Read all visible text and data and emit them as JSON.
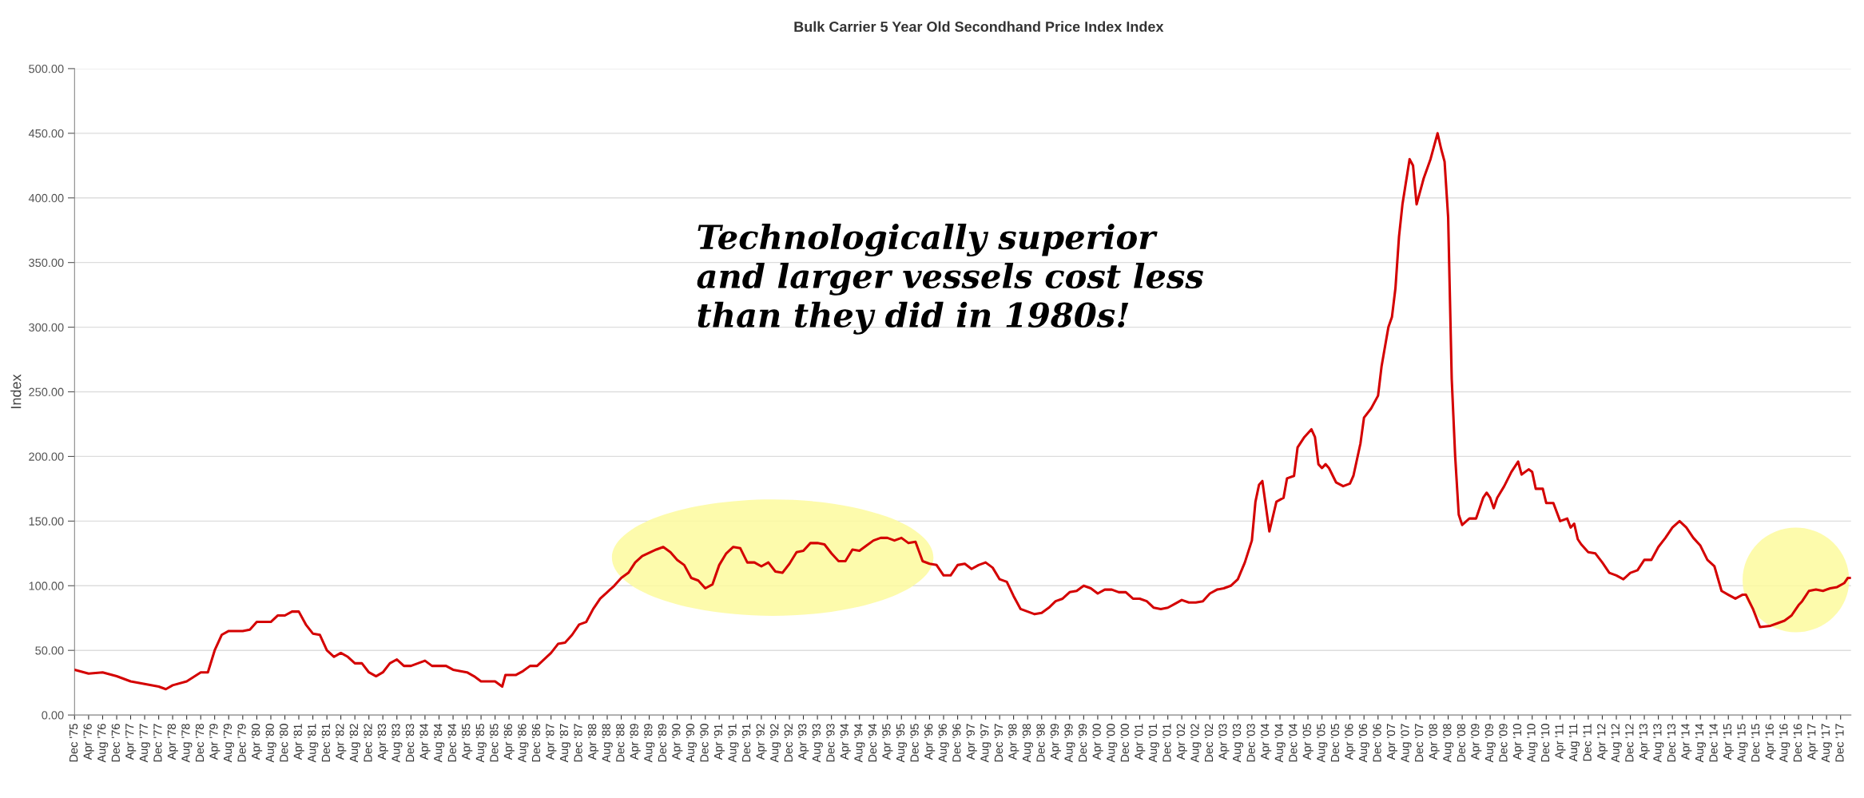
{
  "chart_data": {
    "type": "line",
    "title": "Bulk Carrier 5 Year Old Secondhand Price Index Index",
    "ylabel": "Index",
    "annotations": [
      "Technologically superior\nand larger vessels cost less\nthan they did in 1980s!"
    ],
    "grid": "y",
    "marker": "none",
    "line_style": "solid",
    "xlim": [
      "1975-12",
      "2018-03"
    ],
    "ylim": [
      0,
      500
    ],
    "yticks": [
      {
        "value": 0,
        "label": "0.00"
      },
      {
        "value": 50,
        "label": "50.00"
      },
      {
        "value": 100,
        "label": "100.00"
      },
      {
        "value": 150,
        "label": "150.00"
      },
      {
        "value": 200,
        "label": "200.00"
      },
      {
        "value": 250,
        "label": "250.00"
      },
      {
        "value": 300,
        "label": "300.00"
      },
      {
        "value": 350,
        "label": "350.00"
      },
      {
        "value": 400,
        "label": "400.00"
      },
      {
        "value": 450,
        "label": "450.00"
      },
      {
        "value": 500,
        "label": "500.00"
      }
    ],
    "xticks": [
      {
        "value": "1975-12",
        "label": "Dec '75"
      },
      {
        "value": "1976-04",
        "label": "Apr '76"
      },
      {
        "value": "1976-08",
        "label": "Aug '76"
      },
      {
        "value": "1976-12",
        "label": "Dec '76"
      },
      {
        "value": "1977-04",
        "label": "Apr '77"
      },
      {
        "value": "1977-08",
        "label": "Aug '77"
      },
      {
        "value": "1977-12",
        "label": "Dec '77"
      },
      {
        "value": "1978-04",
        "label": "Apr '78"
      },
      {
        "value": "1978-08",
        "label": "Aug '78"
      },
      {
        "value": "1978-12",
        "label": "Dec '78"
      },
      {
        "value": "1979-04",
        "label": "Apr '79"
      },
      {
        "value": "1979-08",
        "label": "Aug '79"
      },
      {
        "value": "1979-12",
        "label": "Dec '79"
      },
      {
        "value": "1980-04",
        "label": "Apr '80"
      },
      {
        "value": "1980-08",
        "label": "Aug '80"
      },
      {
        "value": "1980-12",
        "label": "Dec '80"
      },
      {
        "value": "1981-04",
        "label": "Apr '81"
      },
      {
        "value": "1981-08",
        "label": "Aug '81"
      },
      {
        "value": "1981-12",
        "label": "Dec '81"
      },
      {
        "value": "1982-04",
        "label": "Apr '82"
      },
      {
        "value": "1982-08",
        "label": "Aug '82"
      },
      {
        "value": "1982-12",
        "label": "Dec '82"
      },
      {
        "value": "1983-04",
        "label": "Apr '83"
      },
      {
        "value": "1983-08",
        "label": "Aug '83"
      },
      {
        "value": "1983-12",
        "label": "Dec '83"
      },
      {
        "value": "1984-04",
        "label": "Apr '84"
      },
      {
        "value": "1984-08",
        "label": "Aug '84"
      },
      {
        "value": "1984-12",
        "label": "Dec '84"
      },
      {
        "value": "1985-04",
        "label": "Apr '85"
      },
      {
        "value": "1985-08",
        "label": "Aug '85"
      },
      {
        "value": "1985-12",
        "label": "Dec '85"
      },
      {
        "value": "1986-04",
        "label": "Apr '86"
      },
      {
        "value": "1986-08",
        "label": "Aug '86"
      },
      {
        "value": "1986-12",
        "label": "Dec '86"
      },
      {
        "value": "1987-04",
        "label": "Apr '87"
      },
      {
        "value": "1987-08",
        "label": "Aug '87"
      },
      {
        "value": "1987-12",
        "label": "Dec '87"
      },
      {
        "value": "1988-04",
        "label": "Apr '88"
      },
      {
        "value": "1988-08",
        "label": "Aug '88"
      },
      {
        "value": "1988-12",
        "label": "Dec '88"
      },
      {
        "value": "1989-04",
        "label": "Apr '89"
      },
      {
        "value": "1989-08",
        "label": "Aug '89"
      },
      {
        "value": "1989-12",
        "label": "Dec '89"
      },
      {
        "value": "1990-04",
        "label": "Apr '90"
      },
      {
        "value": "1990-08",
        "label": "Aug '90"
      },
      {
        "value": "1990-12",
        "label": "Dec '90"
      },
      {
        "value": "1991-04",
        "label": "Apr '91"
      },
      {
        "value": "1991-08",
        "label": "Aug '91"
      },
      {
        "value": "1991-12",
        "label": "Dec '91"
      },
      {
        "value": "1992-04",
        "label": "Apr '92"
      },
      {
        "value": "1992-08",
        "label": "Aug '92"
      },
      {
        "value": "1992-12",
        "label": "Dec '92"
      },
      {
        "value": "1993-04",
        "label": "Apr '93"
      },
      {
        "value": "1993-08",
        "label": "Aug '93"
      },
      {
        "value": "1993-12",
        "label": "Dec '93"
      },
      {
        "value": "1994-04",
        "label": "Apr '94"
      },
      {
        "value": "1994-08",
        "label": "Aug '94"
      },
      {
        "value": "1994-12",
        "label": "Dec '94"
      },
      {
        "value": "1995-04",
        "label": "Apr '95"
      },
      {
        "value": "1995-08",
        "label": "Aug '95"
      },
      {
        "value": "1995-12",
        "label": "Dec '95"
      },
      {
        "value": "1996-04",
        "label": "Apr '96"
      },
      {
        "value": "1996-08",
        "label": "Aug '96"
      },
      {
        "value": "1996-12",
        "label": "Dec '96"
      },
      {
        "value": "1997-04",
        "label": "Apr '97"
      },
      {
        "value": "1997-08",
        "label": "Aug '97"
      },
      {
        "value": "1997-12",
        "label": "Dec '97"
      },
      {
        "value": "1998-04",
        "label": "Apr '98"
      },
      {
        "value": "1998-08",
        "label": "Aug '98"
      },
      {
        "value": "1998-12",
        "label": "Dec '98"
      },
      {
        "value": "1999-04",
        "label": "Apr '99"
      },
      {
        "value": "1999-08",
        "label": "Aug '99"
      },
      {
        "value": "1999-12",
        "label": "Dec '99"
      },
      {
        "value": "2000-04",
        "label": "Apr '00"
      },
      {
        "value": "2000-08",
        "label": "Aug '00"
      },
      {
        "value": "2000-12",
        "label": "Dec '00"
      },
      {
        "value": "2001-04",
        "label": "Apr '01"
      },
      {
        "value": "2001-08",
        "label": "Aug '01"
      },
      {
        "value": "2001-12",
        "label": "Dec '01"
      },
      {
        "value": "2002-04",
        "label": "Apr '02"
      },
      {
        "value": "2002-08",
        "label": "Aug '02"
      },
      {
        "value": "2002-12",
        "label": "Dec '02"
      },
      {
        "value": "2003-04",
        "label": "Apr '03"
      },
      {
        "value": "2003-08",
        "label": "Aug '03"
      },
      {
        "value": "2003-12",
        "label": "Dec '03"
      },
      {
        "value": "2004-04",
        "label": "Apr '04"
      },
      {
        "value": "2004-08",
        "label": "Aug '04"
      },
      {
        "value": "2004-12",
        "label": "Dec '04"
      },
      {
        "value": "2005-04",
        "label": "Apr '05"
      },
      {
        "value": "2005-08",
        "label": "Aug '05"
      },
      {
        "value": "2005-12",
        "label": "Dec '05"
      },
      {
        "value": "2006-04",
        "label": "Apr '06"
      },
      {
        "value": "2006-08",
        "label": "Aug '06"
      },
      {
        "value": "2006-12",
        "label": "Dec '06"
      },
      {
        "value": "2007-04",
        "label": "Apr '07"
      },
      {
        "value": "2007-08",
        "label": "Aug '07"
      },
      {
        "value": "2007-12",
        "label": "Dec '07"
      },
      {
        "value": "2008-04",
        "label": "Apr '08"
      },
      {
        "value": "2008-08",
        "label": "Aug '08"
      },
      {
        "value": "2008-12",
        "label": "Dec '08"
      },
      {
        "value": "2009-04",
        "label": "Apr '09"
      },
      {
        "value": "2009-08",
        "label": "Aug '09"
      },
      {
        "value": "2009-12",
        "label": "Dec '09"
      },
      {
        "value": "2010-04",
        "label": "Apr '10"
      },
      {
        "value": "2010-08",
        "label": "Aug '10"
      },
      {
        "value": "2010-12",
        "label": "Dec '10"
      },
      {
        "value": "2011-04",
        "label": "Apr '11"
      },
      {
        "value": "2011-08",
        "label": "Aug '11"
      },
      {
        "value": "2011-12",
        "label": "Dec '11"
      },
      {
        "value": "2012-04",
        "label": "Apr '12"
      },
      {
        "value": "2012-08",
        "label": "Aug '12"
      },
      {
        "value": "2012-12",
        "label": "Dec '12"
      },
      {
        "value": "2013-04",
        "label": "Apr '13"
      },
      {
        "value": "2013-08",
        "label": "Aug '13"
      },
      {
        "value": "2013-12",
        "label": "Dec '13"
      },
      {
        "value": "2014-04",
        "label": "Apr '14"
      },
      {
        "value": "2014-08",
        "label": "Aug '14"
      },
      {
        "value": "2014-12",
        "label": "Dec '14"
      },
      {
        "value": "2015-04",
        "label": "Apr '15"
      },
      {
        "value": "2015-08",
        "label": "Aug '15"
      },
      {
        "value": "2015-12",
        "label": "Dec '15"
      },
      {
        "value": "2016-04",
        "label": "Apr '16"
      },
      {
        "value": "2016-08",
        "label": "Aug '16"
      },
      {
        "value": "2016-12",
        "label": "Dec '16"
      },
      {
        "value": "2017-04",
        "label": "Apr '17"
      },
      {
        "value": "2017-08",
        "label": "Aug '17"
      },
      {
        "value": "2017-12",
        "label": "Dec '17"
      }
    ],
    "series": [
      {
        "color": "#d40000",
        "x": [
          "1975-12",
          "1976-04",
          "1976-08",
          "1976-12",
          "1977-04",
          "1977-08",
          "1977-12",
          "1978-02",
          "1978-04",
          "1978-08",
          "1978-12",
          "1979-02",
          "1979-04",
          "1979-06",
          "1979-08",
          "1979-12",
          "1980-02",
          "1980-04",
          "1980-08",
          "1980-10",
          "1980-12",
          "1981-02",
          "1981-04",
          "1981-06",
          "1981-08",
          "1981-10",
          "1981-12",
          "1982-02",
          "1982-04",
          "1982-06",
          "1982-08",
          "1982-10",
          "1982-12",
          "1983-02",
          "1983-04",
          "1983-06",
          "1983-08",
          "1983-10",
          "1983-12",
          "1984-04",
          "1984-06",
          "1984-10",
          "1984-12",
          "1985-04",
          "1985-06",
          "1985-08",
          "1985-12",
          "1986-02",
          "1986-03",
          "1986-06",
          "1986-08",
          "1986-10",
          "1986-12",
          "1987-04",
          "1987-06",
          "1987-08",
          "1987-10",
          "1987-12",
          "1988-02",
          "1988-04",
          "1988-06",
          "1988-08",
          "1988-10",
          "1988-12",
          "1989-02",
          "1989-04",
          "1989-06",
          "1989-10",
          "1989-12",
          "1990-02",
          "1990-04",
          "1990-06",
          "1990-08",
          "1990-10",
          "1990-12",
          "1991-02",
          "1991-04",
          "1991-06",
          "1991-08",
          "1991-10",
          "1991-12",
          "1992-02",
          "1992-04",
          "1992-06",
          "1992-08",
          "1992-10",
          "1992-12",
          "1993-02",
          "1993-04",
          "1993-06",
          "1993-08",
          "1993-10",
          "1993-12",
          "1994-02",
          "1994-04",
          "1994-06",
          "1994-08",
          "1994-10",
          "1994-12",
          "1995-02",
          "1995-04",
          "1995-06",
          "1995-08",
          "1995-10",
          "1995-12",
          "1996-02",
          "1996-04",
          "1996-06",
          "1996-08",
          "1996-10",
          "1996-12",
          "1997-02",
          "1997-04",
          "1997-06",
          "1997-08",
          "1997-10",
          "1997-12",
          "1998-02",
          "1998-04",
          "1998-06",
          "1998-08",
          "1998-10",
          "1998-12",
          "1999-02",
          "1999-04",
          "1999-06",
          "1999-08",
          "1999-10",
          "1999-12",
          "2000-02",
          "2000-04",
          "2000-06",
          "2000-08",
          "2000-10",
          "2000-12",
          "2001-02",
          "2001-04",
          "2001-06",
          "2001-08",
          "2001-10",
          "2001-12",
          "2002-02",
          "2002-04",
          "2002-06",
          "2002-08",
          "2002-10",
          "2002-12",
          "2003-02",
          "2003-04",
          "2003-06",
          "2003-08",
          "2003-10",
          "2003-12",
          "2004-01",
          "2004-02",
          "2004-03",
          "2004-05",
          "2004-07",
          "2004-09",
          "2004-10",
          "2004-12",
          "2005-01",
          "2005-03",
          "2005-05",
          "2005-06",
          "2005-07",
          "2005-08",
          "2005-09",
          "2005-10",
          "2005-12",
          "2006-02",
          "2006-04",
          "2006-05",
          "2006-07",
          "2006-08",
          "2006-10",
          "2006-12",
          "2007-01",
          "2007-03",
          "2007-04",
          "2007-05",
          "2007-06",
          "2007-07",
          "2007-09",
          "2007-10",
          "2007-11",
          "2008-01",
          "2008-03",
          "2008-05",
          "2008-06",
          "2008-07",
          "2008-08",
          "2008-09",
          "2008-10",
          "2008-11",
          "2008-12",
          "2009-02",
          "2009-04",
          "2009-06",
          "2009-07",
          "2009-08",
          "2009-09",
          "2009-10",
          "2009-12",
          "2010-02",
          "2010-04",
          "2010-05",
          "2010-07",
          "2010-08",
          "2010-09",
          "2010-11",
          "2010-12",
          "2011-02",
          "2011-04",
          "2011-06",
          "2011-07",
          "2011-08",
          "2011-09",
          "2011-10",
          "2011-12",
          "2012-02",
          "2012-04",
          "2012-06",
          "2012-08",
          "2012-10",
          "2012-12",
          "2013-02",
          "2013-04",
          "2013-06",
          "2013-08",
          "2013-10",
          "2013-12",
          "2014-02",
          "2014-04",
          "2014-06",
          "2014-08",
          "2014-10",
          "2014-12",
          "2015-02",
          "2015-04",
          "2015-06",
          "2015-08",
          "2015-09",
          "2015-11",
          "2016-01",
          "2016-04",
          "2016-06",
          "2016-08",
          "2016-10",
          "2016-12",
          "2017-01",
          "2017-03",
          "2017-05",
          "2017-07",
          "2017-09",
          "2017-11",
          "2018-01",
          "2018-02",
          "2018-03"
        ],
        "values": [
          35,
          32,
          33,
          30,
          26,
          24,
          22,
          20,
          23,
          26,
          33,
          33,
          50,
          62,
          65,
          65,
          66,
          72,
          72,
          77,
          77,
          80,
          80,
          70,
          63,
          62,
          50,
          45,
          48,
          45,
          40,
          40,
          33,
          30,
          33,
          40,
          43,
          38,
          38,
          42,
          38,
          38,
          35,
          33,
          30,
          26,
          26,
          22,
          31,
          31,
          34,
          38,
          38,
          48,
          55,
          56,
          62,
          70,
          72,
          82,
          90,
          95,
          100,
          106,
          110,
          118,
          123,
          128,
          130,
          126,
          120,
          116,
          106,
          104,
          98,
          101,
          116,
          125,
          130,
          129,
          118,
          118,
          115,
          118,
          111,
          110,
          117,
          126,
          127,
          133,
          133,
          132,
          125,
          119,
          119,
          128,
          127,
          131,
          135,
          137,
          137,
          135,
          137,
          133,
          134,
          119,
          117,
          116,
          108,
          108,
          116,
          117,
          113,
          116,
          118,
          114,
          105,
          103,
          92,
          82,
          80,
          78,
          79,
          83,
          88,
          90,
          95,
          96,
          100,
          98,
          94,
          97,
          97,
          95,
          95,
          90,
          90,
          88,
          83,
          82,
          83,
          86,
          89,
          87,
          87,
          88,
          94,
          97,
          98,
          100,
          105,
          118,
          135,
          165,
          178,
          181,
          142,
          165,
          168,
          183,
          185,
          207,
          215,
          221,
          215,
          194,
          191,
          194,
          191,
          180,
          177,
          179,
          185,
          210,
          230,
          237,
          247,
          270,
          300,
          308,
          330,
          370,
          395,
          430,
          425,
          395,
          415,
          430,
          450,
          438,
          428,
          385,
          260,
          200,
          155,
          147,
          152,
          152,
          168,
          172,
          168,
          160,
          168,
          177,
          188,
          196,
          186,
          190,
          188,
          175,
          175,
          164,
          164,
          150,
          152,
          145,
          148,
          136,
          132,
          126,
          125,
          118,
          110,
          108,
          105,
          110,
          112,
          120,
          120,
          130,
          137,
          145,
          150,
          145,
          137,
          131,
          120,
          115,
          96,
          93,
          90,
          93,
          93,
          82,
          68,
          69,
          71,
          73,
          77,
          85,
          88,
          96,
          97,
          96,
          98,
          99,
          102,
          106,
          106
        ]
      }
    ]
  }
}
